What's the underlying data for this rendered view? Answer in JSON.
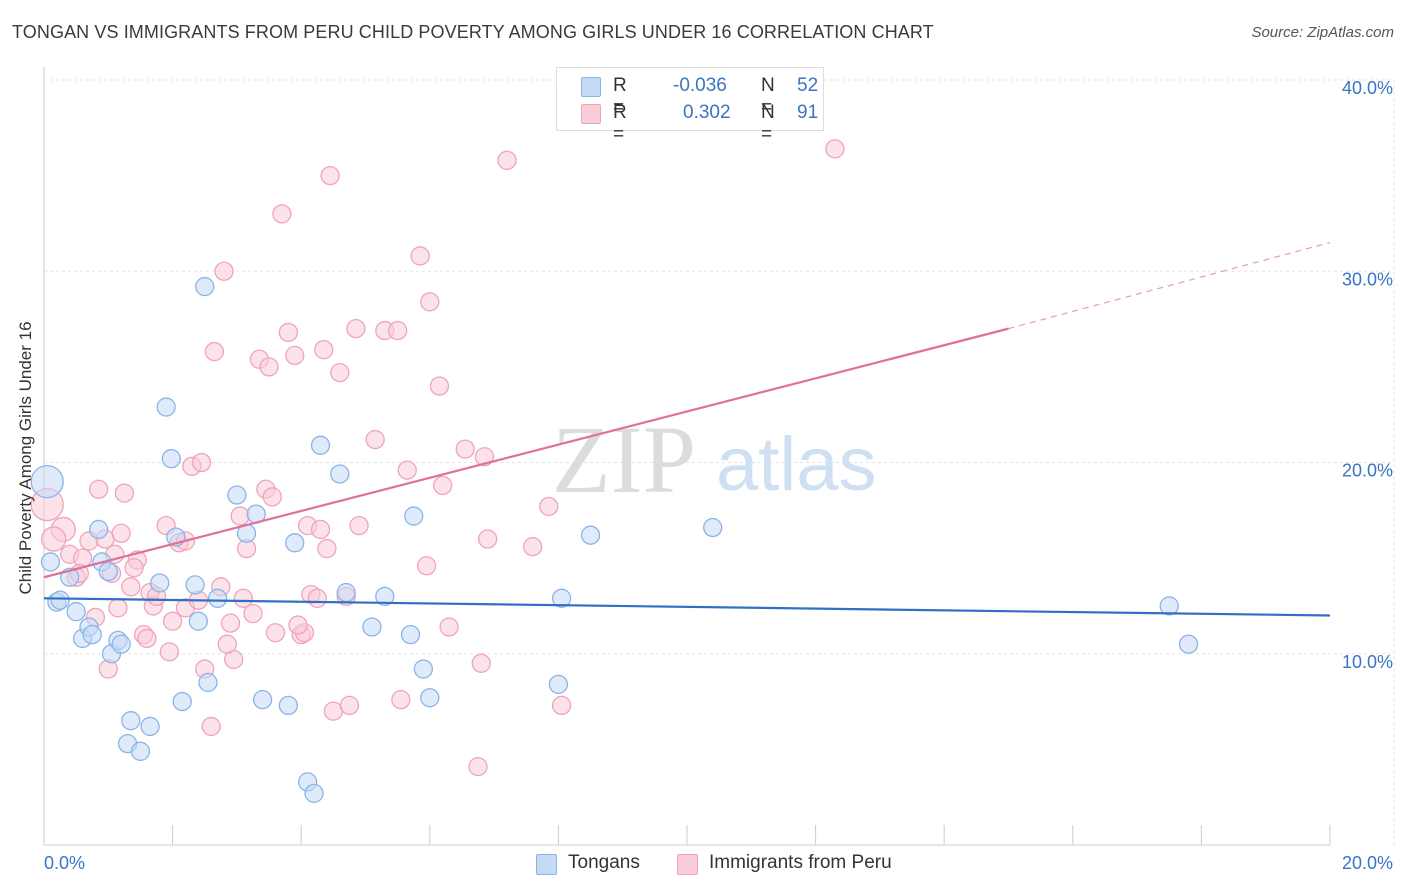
{
  "title": "TONGAN VS IMMIGRANTS FROM PERU CHILD POVERTY AMONG GIRLS UNDER 16 CORRELATION CHART",
  "source": "Source: ZipAtlas.com",
  "watermark": {
    "zip": "ZIP",
    "atlas": "atlas"
  },
  "legend": {
    "rows": [
      {
        "r_label": "R =",
        "r_value": "-0.036",
        "n_label": "N =",
        "n_value": "52"
      },
      {
        "r_label": "R =",
        "r_value": "0.302",
        "n_label": "N =",
        "n_value": "91"
      }
    ]
  },
  "chart_data": {
    "type": "scatter",
    "title": "TONGAN VS IMMIGRANTS FROM PERU CHILD POVERTY AMONG GIRLS UNDER 16 CORRELATION CHART",
    "xlabel": "",
    "ylabel": "Child Poverty Among Girls Under 16",
    "xlim": [
      0,
      20
    ],
    "ylim": [
      0,
      40
    ],
    "x_ticks": [
      "0.0%",
      "20.0%"
    ],
    "y_ticks": [
      {
        "value": 10,
        "label": "10.0%"
      },
      {
        "value": 20,
        "label": "20.0%"
      },
      {
        "value": 30,
        "label": "30.0%"
      },
      {
        "value": 40,
        "label": "40.0%"
      }
    ],
    "grid": true,
    "legend_position": "bottom",
    "series": [
      {
        "name": "Tongans",
        "color": "#8ab4e8",
        "fill": "#c5daf5",
        "line_color": "#2f6fc6",
        "trend": {
          "x": [
            0,
            20
          ],
          "y": [
            12.9,
            12.0
          ]
        },
        "points": [
          [
            0.05,
            19.0
          ],
          [
            0.1,
            14.8
          ],
          [
            0.2,
            12.7
          ],
          [
            0.25,
            12.8
          ],
          [
            0.4,
            14.0
          ],
          [
            0.5,
            12.2
          ],
          [
            0.6,
            10.8
          ],
          [
            0.7,
            11.4
          ],
          [
            0.75,
            11.0
          ],
          [
            0.85,
            16.5
          ],
          [
            0.9,
            14.8
          ],
          [
            1.0,
            14.3
          ],
          [
            1.05,
            10.0
          ],
          [
            1.15,
            10.7
          ],
          [
            1.2,
            10.5
          ],
          [
            1.3,
            5.3
          ],
          [
            1.35,
            6.5
          ],
          [
            1.5,
            4.9
          ],
          [
            1.65,
            6.2
          ],
          [
            1.8,
            13.7
          ],
          [
            1.9,
            22.9
          ],
          [
            1.98,
            20.2
          ],
          [
            2.05,
            16.1
          ],
          [
            2.15,
            7.5
          ],
          [
            2.35,
            13.6
          ],
          [
            2.4,
            11.7
          ],
          [
            2.5,
            29.2
          ],
          [
            2.55,
            8.5
          ],
          [
            2.7,
            12.9
          ],
          [
            3.0,
            18.3
          ],
          [
            3.15,
            16.3
          ],
          [
            3.3,
            17.3
          ],
          [
            3.4,
            7.6
          ],
          [
            3.8,
            7.3
          ],
          [
            3.9,
            15.8
          ],
          [
            4.1,
            3.3
          ],
          [
            4.2,
            2.7
          ],
          [
            4.3,
            20.9
          ],
          [
            4.6,
            19.4
          ],
          [
            4.7,
            13.2
          ],
          [
            5.1,
            11.4
          ],
          [
            5.7,
            11.0
          ],
          [
            5.75,
            17.2
          ],
          [
            5.9,
            9.2
          ],
          [
            6.0,
            7.7
          ],
          [
            8.0,
            8.4
          ],
          [
            8.05,
            12.9
          ],
          [
            8.5,
            16.2
          ],
          [
            10.4,
            16.6
          ],
          [
            17.5,
            12.5
          ],
          [
            17.8,
            10.5
          ],
          [
            5.3,
            13.0
          ]
        ]
      },
      {
        "name": "Immigrants from Peru",
        "color": "#f0a3bb",
        "fill": "#f9ccd9",
        "line_color": "#e07098",
        "trend": {
          "x": [
            0,
            15.0
          ],
          "y": [
            14.0,
            27.0
          ]
        },
        "trend_dashed": {
          "x": [
            15.0,
            20.0
          ],
          "y": [
            27.0,
            31.5
          ]
        },
        "points": [
          [
            0.05,
            17.8
          ],
          [
            0.3,
            16.5
          ],
          [
            0.4,
            15.2
          ],
          [
            0.5,
            14.0
          ],
          [
            0.6,
            15.0
          ],
          [
            0.7,
            15.9
          ],
          [
            0.8,
            11.9
          ],
          [
            0.85,
            18.6
          ],
          [
            0.95,
            16.0
          ],
          [
            1.0,
            9.2
          ],
          [
            1.05,
            14.2
          ],
          [
            1.15,
            12.4
          ],
          [
            1.2,
            16.3
          ],
          [
            1.25,
            18.4
          ],
          [
            1.35,
            13.5
          ],
          [
            1.45,
            14.9
          ],
          [
            1.55,
            11.0
          ],
          [
            1.6,
            10.8
          ],
          [
            1.65,
            13.2
          ],
          [
            1.7,
            12.5
          ],
          [
            1.75,
            13.0
          ],
          [
            1.9,
            16.7
          ],
          [
            1.95,
            10.1
          ],
          [
            2.0,
            11.7
          ],
          [
            2.1,
            15.8
          ],
          [
            2.2,
            12.4
          ],
          [
            2.3,
            19.8
          ],
          [
            2.4,
            12.8
          ],
          [
            2.45,
            20.0
          ],
          [
            2.5,
            9.2
          ],
          [
            2.6,
            6.2
          ],
          [
            2.65,
            25.8
          ],
          [
            2.75,
            13.5
          ],
          [
            2.8,
            30.0
          ],
          [
            2.9,
            11.6
          ],
          [
            2.95,
            9.7
          ],
          [
            3.05,
            17.2
          ],
          [
            3.1,
            12.9
          ],
          [
            3.15,
            15.5
          ],
          [
            3.25,
            12.1
          ],
          [
            3.35,
            25.4
          ],
          [
            3.45,
            18.6
          ],
          [
            3.5,
            25.0
          ],
          [
            3.55,
            18.2
          ],
          [
            3.6,
            11.1
          ],
          [
            3.7,
            33.0
          ],
          [
            3.8,
            26.8
          ],
          [
            3.9,
            25.6
          ],
          [
            4.0,
            11.0
          ],
          [
            4.05,
            11.1
          ],
          [
            4.1,
            16.7
          ],
          [
            4.15,
            13.1
          ],
          [
            4.3,
            16.5
          ],
          [
            4.35,
            25.9
          ],
          [
            4.4,
            15.5
          ],
          [
            4.45,
            35.0
          ],
          [
            4.5,
            7.0
          ],
          [
            4.6,
            24.7
          ],
          [
            4.7,
            13.0
          ],
          [
            4.75,
            7.3
          ],
          [
            4.85,
            27.0
          ],
          [
            4.9,
            16.7
          ],
          [
            5.15,
            21.2
          ],
          [
            5.3,
            26.9
          ],
          [
            5.5,
            26.9
          ],
          [
            5.55,
            7.6
          ],
          [
            5.65,
            19.6
          ],
          [
            5.85,
            30.8
          ],
          [
            5.95,
            14.6
          ],
          [
            6.0,
            28.4
          ],
          [
            6.3,
            11.4
          ],
          [
            6.15,
            24.0
          ],
          [
            6.2,
            18.8
          ],
          [
            6.55,
            20.7
          ],
          [
            6.75,
            4.1
          ],
          [
            6.8,
            9.5
          ],
          [
            6.85,
            20.3
          ],
          [
            6.9,
            16.0
          ],
          [
            7.2,
            35.8
          ],
          [
            7.6,
            15.6
          ],
          [
            7.85,
            17.7
          ],
          [
            8.05,
            7.3
          ],
          [
            12.3,
            36.4
          ],
          [
            2.2,
            15.9
          ],
          [
            1.4,
            14.5
          ],
          [
            4.25,
            12.9
          ],
          [
            0.15,
            16.0
          ],
          [
            0.55,
            14.2
          ],
          [
            2.85,
            10.5
          ],
          [
            3.95,
            11.5
          ],
          [
            1.1,
            15.2
          ]
        ]
      }
    ]
  }
}
